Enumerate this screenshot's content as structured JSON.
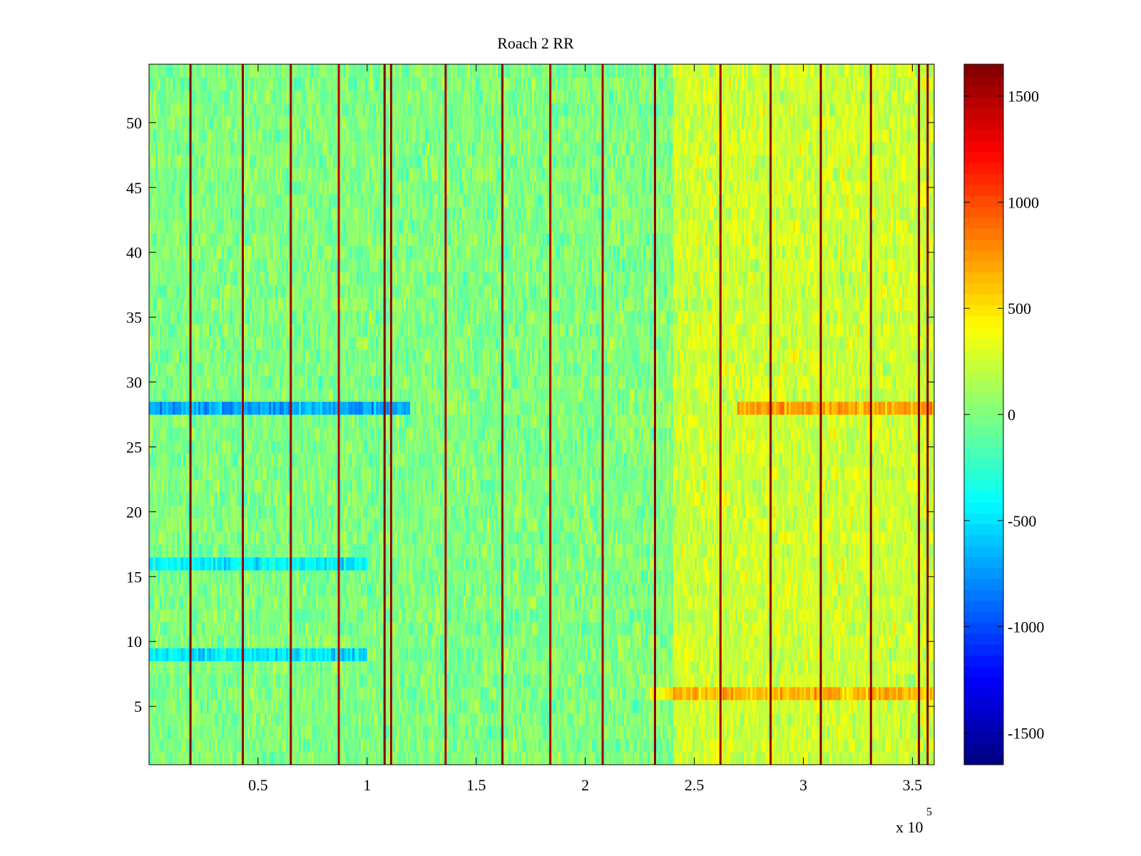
{
  "chart_data": {
    "type": "heatmap",
    "title": "Roach 2 RR",
    "xlabel": "",
    "ylabel": "",
    "x_range": [
      0,
      360000
    ],
    "x_ticks": [
      50000,
      100000,
      150000,
      200000,
      250000,
      300000,
      350000
    ],
    "x_tick_labels": [
      "0.5",
      "1",
      "1.5",
      "2",
      "2.5",
      "3",
      "3.5"
    ],
    "x_exponent_label": "x 10",
    "x_exponent_power": "5",
    "y_range": [
      0.5,
      54.5
    ],
    "y_ticks": [
      5,
      10,
      15,
      20,
      25,
      30,
      35,
      40,
      45,
      50
    ],
    "y_tick_labels": [
      "5",
      "10",
      "15",
      "20",
      "25",
      "30",
      "35",
      "40",
      "45",
      "50"
    ],
    "rows": 54,
    "colorbar": {
      "colormap": "jet",
      "range": [
        -1650,
        1650
      ],
      "ticks": [
        -1500,
        -1000,
        -500,
        0,
        500,
        1000,
        1500
      ],
      "tick_labels": [
        "-1500",
        "-1000",
        "-500",
        "0",
        "500",
        "1000",
        "1500"
      ]
    },
    "background_value_mean": 0,
    "background_value_spread": 300,
    "vertical_spike_lines": [
      {
        "x": 19000,
        "value": 1650
      },
      {
        "x": 43000,
        "value": 1600
      },
      {
        "x": 65000,
        "value": 1550
      },
      {
        "x": 87000,
        "value": 1450
      },
      {
        "x": 108000,
        "value": 1650
      },
      {
        "x": 111000,
        "value": 1550
      },
      {
        "x": 136000,
        "value": 1500
      },
      {
        "x": 162000,
        "value": 1600
      },
      {
        "x": 184000,
        "value": 1500
      },
      {
        "x": 208000,
        "value": 1550
      },
      {
        "x": 232000,
        "value": 1600
      },
      {
        "x": 262000,
        "value": 1550
      },
      {
        "x": 285000,
        "value": 1600
      },
      {
        "x": 308000,
        "value": 1650
      },
      {
        "x": 331000,
        "value": 1600
      },
      {
        "x": 353000,
        "value": 1650
      },
      {
        "x": 357000,
        "value": 1600
      }
    ],
    "row_bias": [
      {
        "row": 28,
        "segment": [
          0,
          120000
        ],
        "value": -700
      },
      {
        "row": 28,
        "segment": [
          270000,
          360000
        ],
        "value": 450
      },
      {
        "row": 9,
        "segment": [
          0,
          100000
        ],
        "value": -500
      },
      {
        "row": 6,
        "segment": [
          230000,
          360000
        ],
        "value": 400
      },
      {
        "row": 16,
        "segment": [
          0,
          100000
        ],
        "value": -450
      }
    ],
    "region_bias": [
      {
        "segment": [
          240000,
          360000
        ],
        "value": 250
      }
    ]
  }
}
